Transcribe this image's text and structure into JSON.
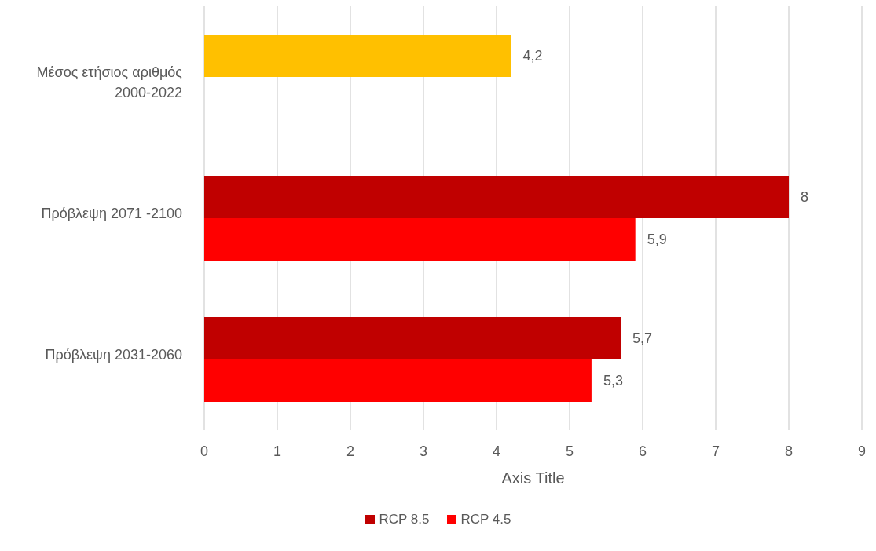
{
  "chart_data": {
    "type": "bar",
    "orientation": "horizontal",
    "xlabel": "Axis Title",
    "categories": [
      "Μέσος ετήσιος αριθμός 2000-2022",
      "Πρόβλεψη 2071 -2100",
      "Πρόβλεψη 2031-2060"
    ],
    "series": [
      {
        "name": "RCP 8.5",
        "color": "#c00000",
        "colors": [
          "#ffc000",
          "#c00000",
          "#c00000"
        ],
        "values": [
          4.2,
          8,
          5.7
        ],
        "value_labels": [
          "4,2",
          "8",
          "5,7"
        ]
      },
      {
        "name": "RCP 4.5",
        "color": "#ff0000",
        "values": [
          null,
          5.9,
          5.3
        ],
        "value_labels": [
          null,
          "5,9",
          "5,3"
        ]
      }
    ],
    "xlim": [
      0,
      9
    ],
    "xticks": [
      0,
      1,
      2,
      3,
      4,
      5,
      6,
      7,
      8,
      9
    ],
    "grid": "x",
    "legend": "bottom"
  }
}
